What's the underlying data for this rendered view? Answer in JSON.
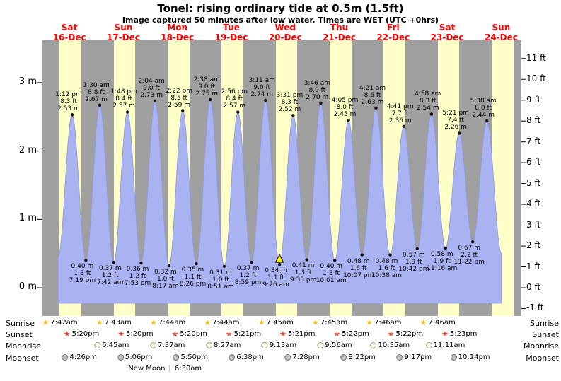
{
  "title": "Tonel: rising  ordinary tide at 0.5m (1.5ft)",
  "subtitle": "Image captured 50 minutes after low water. Times are WET (UTC +0hrs)",
  "colors": {
    "day_band": "#ffffc8",
    "night_band": "#a0a0a0",
    "tide_fill": "#a9b3f1",
    "tide_edge": "#8e96da",
    "day_label": "#ff0000",
    "sunrise_star": "#f2c01e",
    "sunset_star": "#e8442a",
    "moonrise_circle": "#fffde8",
    "moonset_circle": "#b9b9b9",
    "marker": "#ffee00",
    "dot": "#111111"
  },
  "icons": {
    "sunrise": "star-icon",
    "sunset": "star-icon",
    "moonrise": "circle-icon",
    "moonset": "circle-icon",
    "current_position": "triangle-up-icon"
  },
  "astro": {
    "row_labels": [
      "Sunrise",
      "Sunset",
      "Moonrise",
      "Moonset"
    ],
    "sunrise": [
      {
        "day": 0,
        "time": "7:42am"
      },
      {
        "day": 1,
        "time": "7:43am"
      },
      {
        "day": 2,
        "time": "7:44am"
      },
      {
        "day": 3,
        "time": "7:44am"
      },
      {
        "day": 4,
        "time": "7:45am"
      },
      {
        "day": 5,
        "time": "7:45am"
      },
      {
        "day": 6,
        "time": "7:46am"
      },
      {
        "day": 7,
        "time": "7:46am"
      }
    ],
    "sunset": [
      {
        "day": 0,
        "time": "5:20pm"
      },
      {
        "day": 1,
        "time": "5:20pm"
      },
      {
        "day": 2,
        "time": "5:20pm"
      },
      {
        "day": 3,
        "time": "5:21pm"
      },
      {
        "day": 4,
        "time": "5:21pm"
      },
      {
        "day": 5,
        "time": "5:22pm"
      },
      {
        "day": 6,
        "time": "5:22pm"
      },
      {
        "day": 7,
        "time": "5:23pm"
      }
    ],
    "moonrise": [
      {
        "day": 1,
        "time": "6:45am"
      },
      {
        "day": 2,
        "time": "7:37am"
      },
      {
        "day": 3,
        "time": "8:27am"
      },
      {
        "day": 4,
        "time": "9:13am"
      },
      {
        "day": 5,
        "time": "9:56am"
      },
      {
        "day": 6,
        "time": "10:35am"
      },
      {
        "day": 7,
        "time": "11:11am"
      }
    ],
    "moonset": [
      {
        "day": 0,
        "time": "4:26pm"
      },
      {
        "day": 1,
        "time": "5:06pm"
      },
      {
        "day": 2,
        "time": "5:50pm"
      },
      {
        "day": 3,
        "time": "6:38pm"
      },
      {
        "day": 4,
        "time": "7:28pm"
      },
      {
        "day": 5,
        "time": "8:22pm"
      },
      {
        "day": 6,
        "time": "9:17pm"
      },
      {
        "day": 7,
        "time": "10:14pm"
      }
    ],
    "new_moon": {
      "label": "New Moon",
      "divider": "|",
      "time": "6:30am",
      "day": 2,
      "time24": "06:30"
    }
  },
  "chart_data": {
    "type": "area",
    "title": "Tonel: rising ordinary tide at 0.5m (1.5ft)",
    "subtitle": "Image captured 50 minutes after low water. Times are WET (UTC +0hrs)",
    "background": "alternating daylight (yellow) and night (gray) bands",
    "days": [
      {
        "name": "Sat",
        "date": "16-Dec"
      },
      {
        "name": "Sun",
        "date": "17-Dec"
      },
      {
        "name": "Mon",
        "date": "18-Dec"
      },
      {
        "name": "Tue",
        "date": "19-Dec"
      },
      {
        "name": "Wed",
        "date": "20-Dec"
      },
      {
        "name": "Thu",
        "date": "21-Dec"
      },
      {
        "name": "Fri",
        "date": "22-Dec"
      },
      {
        "name": "Sat",
        "date": "23-Dec"
      },
      {
        "name": "Sun",
        "date": "24-Dec"
      }
    ],
    "y_left": {
      "unit": "m",
      "ticks": [
        0,
        1,
        2,
        3
      ],
      "labels": [
        "0 m",
        "1 m",
        "2 m",
        "3 m"
      ],
      "ylim": [
        -0.4,
        3.6
      ]
    },
    "y_right": {
      "unit": "ft",
      "ticks": [
        -1,
        0,
        1,
        2,
        3,
        4,
        5,
        6,
        7,
        8,
        9,
        10,
        11
      ],
      "labels": [
        "-1 ft",
        "0 ft",
        "1 ft",
        "2 ft",
        "3 ft",
        "4 ft",
        "5 ft",
        "6 ft",
        "7 ft",
        "8 ft",
        "9 ft",
        "10 ft",
        "11 ft"
      ]
    },
    "extremes": [
      {
        "day": 0,
        "time24": "06:55",
        "kind": "edge",
        "m": 0.45
      },
      {
        "day": 0,
        "time24": "13:12",
        "kind": "high",
        "time_label": "1:12 pm",
        "ft_label": "8.3 ft",
        "m_label": "2.53 m",
        "m": 2.53
      },
      {
        "day": 0,
        "time24": "19:19",
        "kind": "low",
        "time_label": "7:19 pm",
        "ft_label": "1.3 ft",
        "m_label": "0.40 m",
        "m": 0.4
      },
      {
        "day": 1,
        "time24": "01:30",
        "kind": "high",
        "time_label": "1:30 am",
        "ft_label": "8.8 ft",
        "m_label": "2.67 m",
        "m": 2.67
      },
      {
        "day": 1,
        "time24": "07:42",
        "kind": "low",
        "time_label": "7:42 am",
        "ft_label": "1.2 ft",
        "m_label": "0.37 m",
        "m": 0.37
      },
      {
        "day": 1,
        "time24": "13:48",
        "kind": "high",
        "time_label": "1:48 pm",
        "ft_label": "8.4 ft",
        "m_label": "2.57 m",
        "m": 2.57
      },
      {
        "day": 1,
        "time24": "19:53",
        "kind": "low",
        "time_label": "7:53 pm",
        "ft_label": "1.2 ft",
        "m_label": "0.36 m",
        "m": 0.36
      },
      {
        "day": 2,
        "time24": "02:04",
        "kind": "high",
        "time_label": "2:04 am",
        "ft_label": "9.0 ft",
        "m_label": "2.73 m",
        "m": 2.73
      },
      {
        "day": 2,
        "time24": "08:17",
        "kind": "low",
        "time_label": "8:17 am",
        "ft_label": "1.0 ft",
        "m_label": "0.32 m",
        "m": 0.32
      },
      {
        "day": 2,
        "time24": "14:22",
        "kind": "high",
        "time_label": "2:22 pm",
        "ft_label": "8.5 ft",
        "m_label": "2.59 m",
        "m": 2.59
      },
      {
        "day": 2,
        "time24": "20:26",
        "kind": "low",
        "time_label": "8:26 pm",
        "ft_label": "1.1 ft",
        "m_label": "0.35 m",
        "m": 0.35
      },
      {
        "day": 3,
        "time24": "02:38",
        "kind": "high",
        "time_label": "2:38 am",
        "ft_label": "9.0 ft",
        "m_label": "2.75 m",
        "m": 2.75
      },
      {
        "day": 3,
        "time24": "08:51",
        "kind": "low",
        "time_label": "8:51 am",
        "ft_label": "1.0 ft",
        "m_label": "0.31 m",
        "m": 0.31
      },
      {
        "day": 3,
        "time24": "14:56",
        "kind": "high",
        "time_label": "2:56 pm",
        "ft_label": "8.4 ft",
        "m_label": "2.57 m",
        "m": 2.57
      },
      {
        "day": 3,
        "time24": "20:59",
        "kind": "low",
        "time_label": "8:59 pm",
        "ft_label": "1.2 ft",
        "m_label": "0.37 m",
        "m": 0.37
      },
      {
        "day": 4,
        "time24": "03:11",
        "kind": "high",
        "time_label": "3:11 am",
        "ft_label": "9.0 ft",
        "m_label": "2.74 m",
        "m": 2.74
      },
      {
        "day": 4,
        "time24": "09:26",
        "kind": "low",
        "time_label": "9:26 am",
        "ft_label": "1.1 ft",
        "m_label": "0.34 m",
        "m": 0.34,
        "marker": true
      },
      {
        "day": 4,
        "time24": "15:31",
        "kind": "high",
        "time_label": "3:31 pm",
        "ft_label": "8.3 ft",
        "m_label": "2.52 m",
        "m": 2.52
      },
      {
        "day": 4,
        "time24": "21:33",
        "kind": "low",
        "time_label": "9:33 pm",
        "ft_label": "1.3 ft",
        "m_label": "0.41 m",
        "m": 0.41
      },
      {
        "day": 5,
        "time24": "03:46",
        "kind": "high",
        "time_label": "3:46 am",
        "ft_label": "8.9 ft",
        "m_label": "2.70 m",
        "m": 2.7
      },
      {
        "day": 5,
        "time24": "10:01",
        "kind": "low",
        "time_label": "10:01 am",
        "ft_label": "1.3 ft",
        "m_label": "0.40 m",
        "m": 0.4
      },
      {
        "day": 5,
        "time24": "16:05",
        "kind": "high",
        "time_label": "4:05 pm",
        "ft_label": "8.0 ft",
        "m_label": "2.45 m",
        "m": 2.45
      },
      {
        "day": 5,
        "time24": "22:07",
        "kind": "low",
        "time_label": "10:07 pm",
        "ft_label": "1.6 ft",
        "m_label": "0.48 m",
        "m": 0.48
      },
      {
        "day": 6,
        "time24": "04:21",
        "kind": "high",
        "time_label": "4:21 am",
        "ft_label": "8.6 ft",
        "m_label": "2.63 m",
        "m": 2.63
      },
      {
        "day": 6,
        "time24": "10:38",
        "kind": "low",
        "time_label": "10:38 am",
        "ft_label": "1.6 ft",
        "m_label": "0.48 m",
        "m": 0.48
      },
      {
        "day": 6,
        "time24": "16:41",
        "kind": "high",
        "time_label": "4:41 pm",
        "ft_label": "7.7 ft",
        "m_label": "2.36 m",
        "m": 2.36
      },
      {
        "day": 6,
        "time24": "22:42",
        "kind": "low",
        "time_label": "10:42 pm",
        "ft_label": "1.9 ft",
        "m_label": "0.57 m",
        "m": 0.57
      },
      {
        "day": 7,
        "time24": "04:58",
        "kind": "high",
        "time_label": "4:58 am",
        "ft_label": "8.3 ft",
        "m_label": "2.54 m",
        "m": 2.54
      },
      {
        "day": 7,
        "time24": "11:16",
        "kind": "low",
        "time_label": "11:16 am",
        "ft_label": "1.9 ft",
        "m_label": "0.58 m",
        "m": 0.58
      },
      {
        "day": 7,
        "time24": "17:21",
        "kind": "high",
        "time_label": "5:21 pm",
        "ft_label": "7.4 ft",
        "m_label": "2.26 m",
        "m": 2.26
      },
      {
        "day": 7,
        "time24": "23:22",
        "kind": "low",
        "time_label": "11:22 pm",
        "ft_label": "2.2 ft",
        "m_label": "0.67 m",
        "m": 0.67
      },
      {
        "day": 8,
        "time24": "05:38",
        "kind": "high",
        "time_label": "5:38 am",
        "ft_label": "8.0 ft",
        "m_label": "2.44 m",
        "m": 2.44
      },
      {
        "day": 8,
        "time24": "12:10",
        "kind": "edge",
        "m": 0.5
      }
    ]
  }
}
